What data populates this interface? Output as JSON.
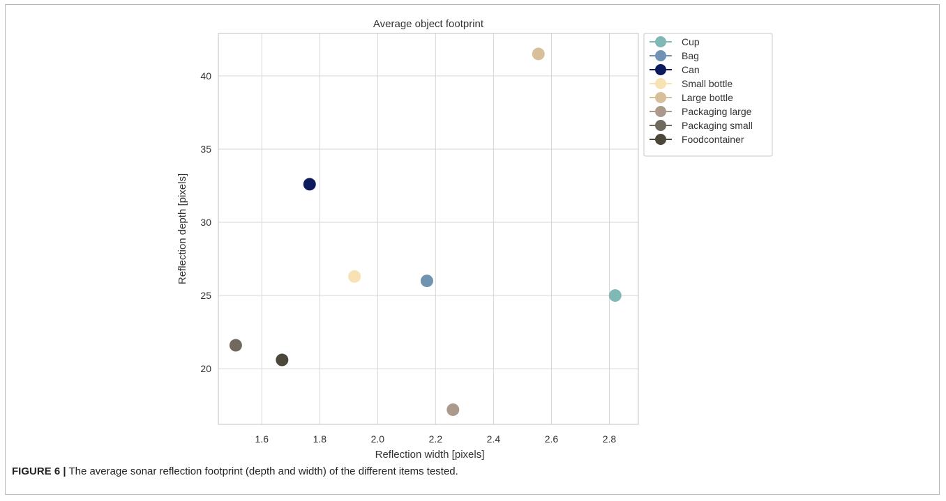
{
  "chart_data": {
    "type": "scatter",
    "title": "Average object footprint",
    "xlabel": "Reflection width [pixels]",
    "ylabel": "Reflection depth [pixels]",
    "xlim": [
      1.45,
      2.9
    ],
    "ylim": [
      16.2,
      42.9
    ],
    "xticks": [
      1.6,
      1.8,
      2.0,
      2.2,
      2.4,
      2.6,
      2.8
    ],
    "xtick_labels": [
      "1.6",
      "1.8",
      "2.0",
      "2.2",
      "2.4",
      "2.6",
      "2.8"
    ],
    "yticks": [
      20,
      25,
      30,
      35,
      40
    ],
    "ytick_labels": [
      "20",
      "25",
      "30",
      "35",
      "40"
    ],
    "grid": true,
    "legend_position": "outside-top-right",
    "series": [
      {
        "name": "Cup",
        "color": "#7fb8b5",
        "x": [
          2.82
        ],
        "y": [
          25.0
        ]
      },
      {
        "name": "Bag",
        "color": "#6f93b0",
        "x": [
          2.17
        ],
        "y": [
          26.0
        ]
      },
      {
        "name": "Can",
        "color": "#0d1b5e",
        "x": [
          1.765
        ],
        "y": [
          32.6
        ]
      },
      {
        "name": "Small bottle",
        "color": "#f6e2b3",
        "x": [
          1.92
        ],
        "y": [
          26.3
        ]
      },
      {
        "name": "Large bottle",
        "color": "#d7bf9b",
        "x": [
          2.555
        ],
        "y": [
          41.5
        ]
      },
      {
        "name": "Packaging large",
        "color": "#ab9a8b",
        "x": [
          2.26
        ],
        "y": [
          17.2
        ]
      },
      {
        "name": "Packaging small",
        "color": "#6f6a5d",
        "x": [
          1.51
        ],
        "y": [
          21.6
        ]
      },
      {
        "name": "Foodcontainer",
        "color": "#4b473b",
        "x": [
          1.67
        ],
        "y": [
          20.6
        ]
      }
    ]
  },
  "caption": {
    "lead": "FIGURE 6 |",
    "text": " The average sonar reflection footprint (depth and width) of the different items tested."
  }
}
